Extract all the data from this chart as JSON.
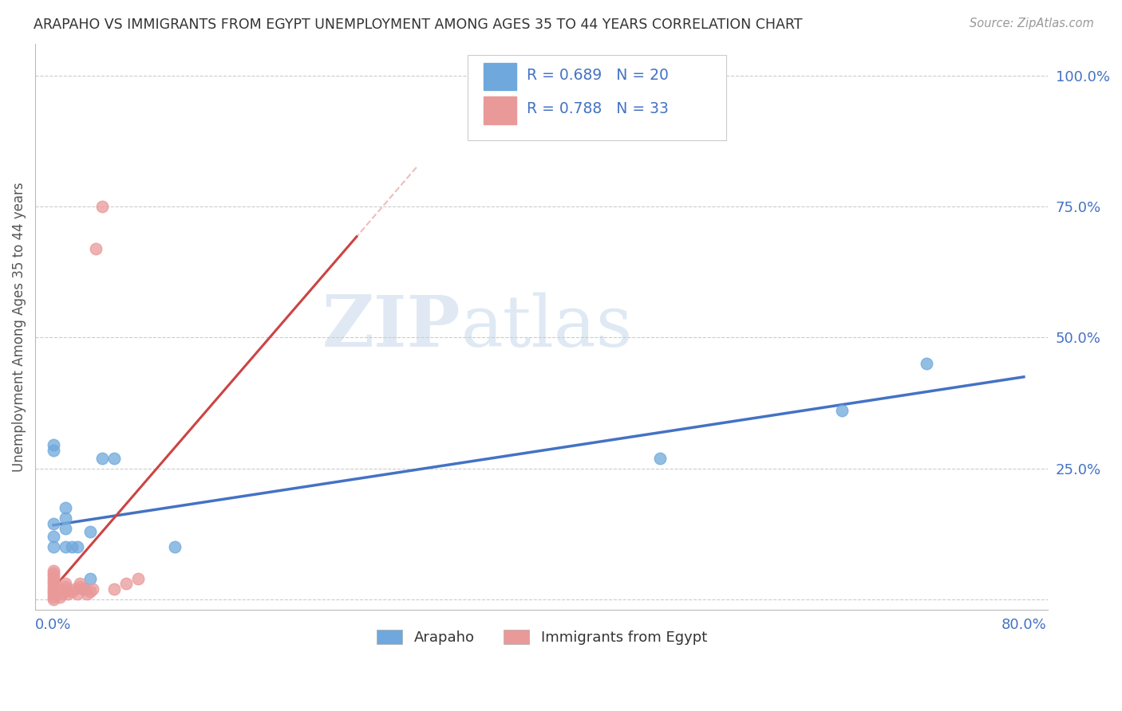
{
  "title": "ARAPAHO VS IMMIGRANTS FROM EGYPT UNEMPLOYMENT AMONG AGES 35 TO 44 YEARS CORRELATION CHART",
  "source": "Source: ZipAtlas.com",
  "ylabel": "Unemployment Among Ages 35 to 44 years",
  "arapaho_R": "0.689",
  "arapaho_N": "20",
  "egypt_R": "0.788",
  "egypt_N": "33",
  "arapaho_color": "#6fa8dc",
  "egypt_color": "#ea9999",
  "trendline_arapaho_color": "#4472c4",
  "trendline_egypt_color": "#cc4444",
  "legend_text_color": "#4472c4",
  "watermark_zip": "ZIP",
  "watermark_atlas": "atlas",
  "arapaho_x": [
    0.0,
    0.0,
    0.0,
    0.0,
    0.0,
    0.01,
    0.01,
    0.01,
    0.01,
    0.015,
    0.02,
    0.025,
    0.03,
    0.03,
    0.04,
    0.05,
    0.1,
    0.5,
    0.65,
    0.72
  ],
  "arapaho_y": [
    0.1,
    0.12,
    0.145,
    0.285,
    0.295,
    0.1,
    0.135,
    0.155,
    0.175,
    0.1,
    0.1,
    0.02,
    0.04,
    0.13,
    0.27,
    0.27,
    0.1,
    0.27,
    0.36,
    0.45
  ],
  "egypt_x": [
    0.0,
    0.0,
    0.0,
    0.0,
    0.0,
    0.0,
    0.0,
    0.0,
    0.0,
    0.0,
    0.0,
    0.0,
    0.005,
    0.007,
    0.009,
    0.01,
    0.01,
    0.01,
    0.012,
    0.015,
    0.018,
    0.02,
    0.022,
    0.022,
    0.025,
    0.028,
    0.03,
    0.032,
    0.035,
    0.04,
    0.05,
    0.06,
    0.07
  ],
  "egypt_y": [
    0.0,
    0.005,
    0.01,
    0.015,
    0.02,
    0.025,
    0.03,
    0.035,
    0.04,
    0.045,
    0.05,
    0.055,
    0.005,
    0.01,
    0.015,
    0.02,
    0.025,
    0.03,
    0.01,
    0.015,
    0.02,
    0.01,
    0.025,
    0.03,
    0.02,
    0.01,
    0.015,
    0.02,
    0.67,
    0.75,
    0.02,
    0.03,
    0.04
  ],
  "xlim": [
    -0.015,
    0.82
  ],
  "ylim": [
    -0.02,
    1.06
  ],
  "x_ticks": [
    0.0,
    0.2,
    0.4,
    0.6,
    0.8
  ],
  "x_tick_labels": [
    "0.0%",
    "",
    "",
    "",
    "80.0%"
  ],
  "y_ticks": [
    0.0,
    0.25,
    0.5,
    0.75,
    1.0
  ],
  "y_tick_labels": [
    "",
    "25.0%",
    "50.0%",
    "75.0%",
    "100.0%"
  ]
}
